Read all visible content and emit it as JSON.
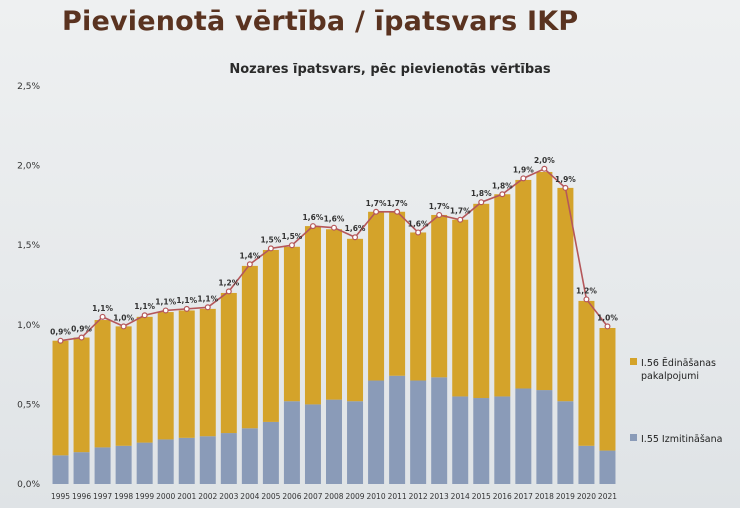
{
  "slide": {
    "title": "Pievienotā vērtība / īpatsvars IKP"
  },
  "chart_data": {
    "type": "bar",
    "stacked": true,
    "title": "Nozares īpatsvars, pēc pievienotās vērtības",
    "categories": [
      "1995",
      "1996",
      "1997",
      "1998",
      "1999",
      "2000",
      "2001",
      "2002",
      "2003",
      "2004",
      "2005",
      "2006",
      "2007",
      "2008",
      "2009",
      "2010",
      "2011",
      "2012",
      "2013",
      "2014",
      "2015",
      "2016",
      "2017",
      "2018",
      "2019",
      "2020",
      "2021"
    ],
    "series": [
      {
        "name": "I.55 Izmitināšana",
        "color": "#8a9bb8",
        "values": [
          0.18,
          0.2,
          0.23,
          0.24,
          0.26,
          0.28,
          0.29,
          0.3,
          0.32,
          0.35,
          0.39,
          0.52,
          0.5,
          0.53,
          0.52,
          0.65,
          0.68,
          0.65,
          0.67,
          0.55,
          0.54,
          0.55,
          0.6,
          0.59,
          0.52,
          0.24,
          0.21
        ]
      },
      {
        "name": "I.56 Ēdināšanas pakalpojumi",
        "color": "#d4a32a",
        "values": [
          0.72,
          0.72,
          0.8,
          0.75,
          0.79,
          0.8,
          0.8,
          0.8,
          0.88,
          1.02,
          1.08,
          0.97,
          1.12,
          1.07,
          1.02,
          1.06,
          1.03,
          0.93,
          1.02,
          1.11,
          1.22,
          1.27,
          1.31,
          1.37,
          1.34,
          0.91,
          0.77
        ]
      }
    ],
    "total_line": {
      "values": [
        0.9,
        0.92,
        1.05,
        0.99,
        1.06,
        1.09,
        1.1,
        1.11,
        1.21,
        1.38,
        1.48,
        1.5,
        1.62,
        1.61,
        1.55,
        1.71,
        1.71,
        1.58,
        1.69,
        1.66,
        1.77,
        1.82,
        1.92,
        1.98,
        1.86,
        1.16,
        0.99
      ],
      "labels": [
        "0,9%",
        "0,9%",
        "1,1%",
        "1,0%",
        "1,1%",
        "1,1%",
        "1,1%",
        "1,1%",
        "1,2%",
        "1,4%",
        "1,5%",
        "1,5%",
        "1,6%",
        "1,6%",
        "1,6%",
        "1,7%",
        "1,7%",
        "1,6%",
        "1,7%",
        "1,7%",
        "1,8%",
        "1,8%",
        "1,9%",
        "2,0%",
        "1,9%",
        "1,2%",
        "1,0%"
      ],
      "color": "#b5575a"
    },
    "y_ticks": [
      "0,0%",
      "0,5%",
      "1,0%",
      "1,5%",
      "2,0%",
      "2,5%"
    ],
    "ylim": [
      0,
      2.5
    ],
    "legend_position": "right",
    "grid": false
  }
}
